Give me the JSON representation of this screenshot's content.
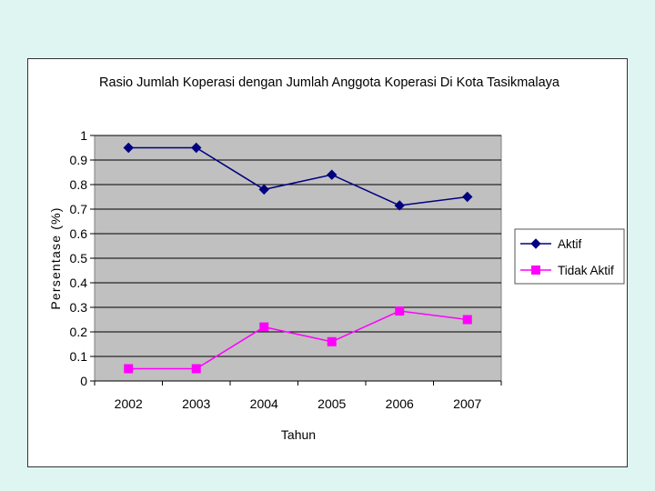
{
  "chart_data": {
    "type": "line",
    "title": "Rasio Jumlah Koperasi dengan Jumlah Anggota Koperasi Di Kota Tasikmalaya",
    "xlabel": "Tahun",
    "ylabel": "Persentase (%)",
    "categories": [
      "2002",
      "2003",
      "2004",
      "2005",
      "2006",
      "2007"
    ],
    "ylim": [
      0,
      1
    ],
    "yticks": [
      "0",
      "0.1",
      "0.2",
      "0.3",
      "0.4",
      "0.5",
      "0.6",
      "0.7",
      "0.8",
      "0.9",
      "1"
    ],
    "grid": true,
    "legend_position": "right",
    "plot_background": "#c0c0c0",
    "series": [
      {
        "name": "Aktif",
        "color": "#000080",
        "marker": "diamond",
        "values": [
          0.95,
          0.95,
          0.78,
          0.84,
          0.715,
          0.75
        ]
      },
      {
        "name": "Tidak Aktif",
        "color": "#ff00ff",
        "marker": "square",
        "values": [
          0.05,
          0.05,
          0.22,
          0.16,
          0.285,
          0.25
        ]
      }
    ]
  }
}
